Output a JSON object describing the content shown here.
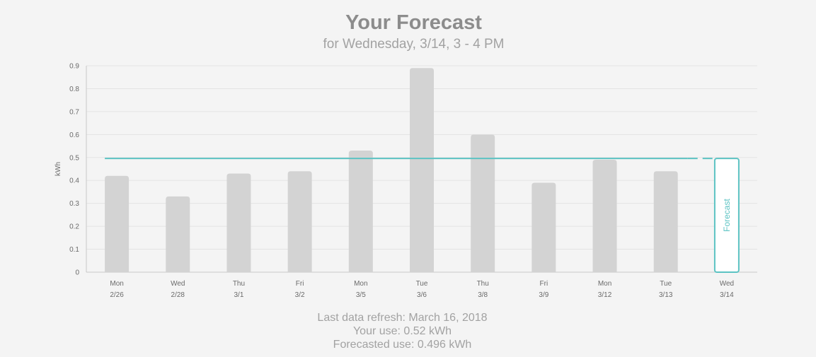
{
  "header": {
    "title": "Your Forecast",
    "subtitle": "for Wednesday, 3/14, 3 - 4 PM"
  },
  "footer": {
    "refresh": "Last data refresh: March 16, 2018",
    "your_use": "Your use: 0.52 kWh",
    "forecasted_use": "Forecasted use: 0.496 kWh"
  },
  "colors": {
    "bar": "#d3d3d3",
    "forecast": "#5cc3c3",
    "grid": "#e3e3e3",
    "axis": "#c8c8c8",
    "tick_text": "#6a6a6a"
  },
  "chart_data": {
    "type": "bar",
    "title": "Your Forecast",
    "subtitle": "for Wednesday, 3/14, 3 - 4 PM",
    "ylabel": "kWh",
    "xlabel": "",
    "ylim": [
      0,
      0.9
    ],
    "yticks": [
      "0",
      "0.1",
      "0.2",
      "0.3",
      "0.4",
      "0.5",
      "0.6",
      "0.7",
      "0.8",
      "0.9"
    ],
    "grid": true,
    "categories": [
      {
        "day": "Mon",
        "date": "2/26"
      },
      {
        "day": "Wed",
        "date": "2/28"
      },
      {
        "day": "Thu",
        "date": "3/1"
      },
      {
        "day": "Fri",
        "date": "3/2"
      },
      {
        "day": "Mon",
        "date": "3/5"
      },
      {
        "day": "Tue",
        "date": "3/6"
      },
      {
        "day": "Thu",
        "date": "3/8"
      },
      {
        "day": "Fri",
        "date": "3/9"
      },
      {
        "day": "Mon",
        "date": "3/12"
      },
      {
        "day": "Tue",
        "date": "3/13"
      },
      {
        "day": "Wed",
        "date": "3/14"
      }
    ],
    "values": [
      0.42,
      0.33,
      0.43,
      0.44,
      0.53,
      0.89,
      0.6,
      0.39,
      0.49,
      0.44,
      null
    ],
    "forecast": {
      "category_index": 10,
      "value": 0.496,
      "label": "Forecast"
    },
    "reference_line": 0.496
  }
}
